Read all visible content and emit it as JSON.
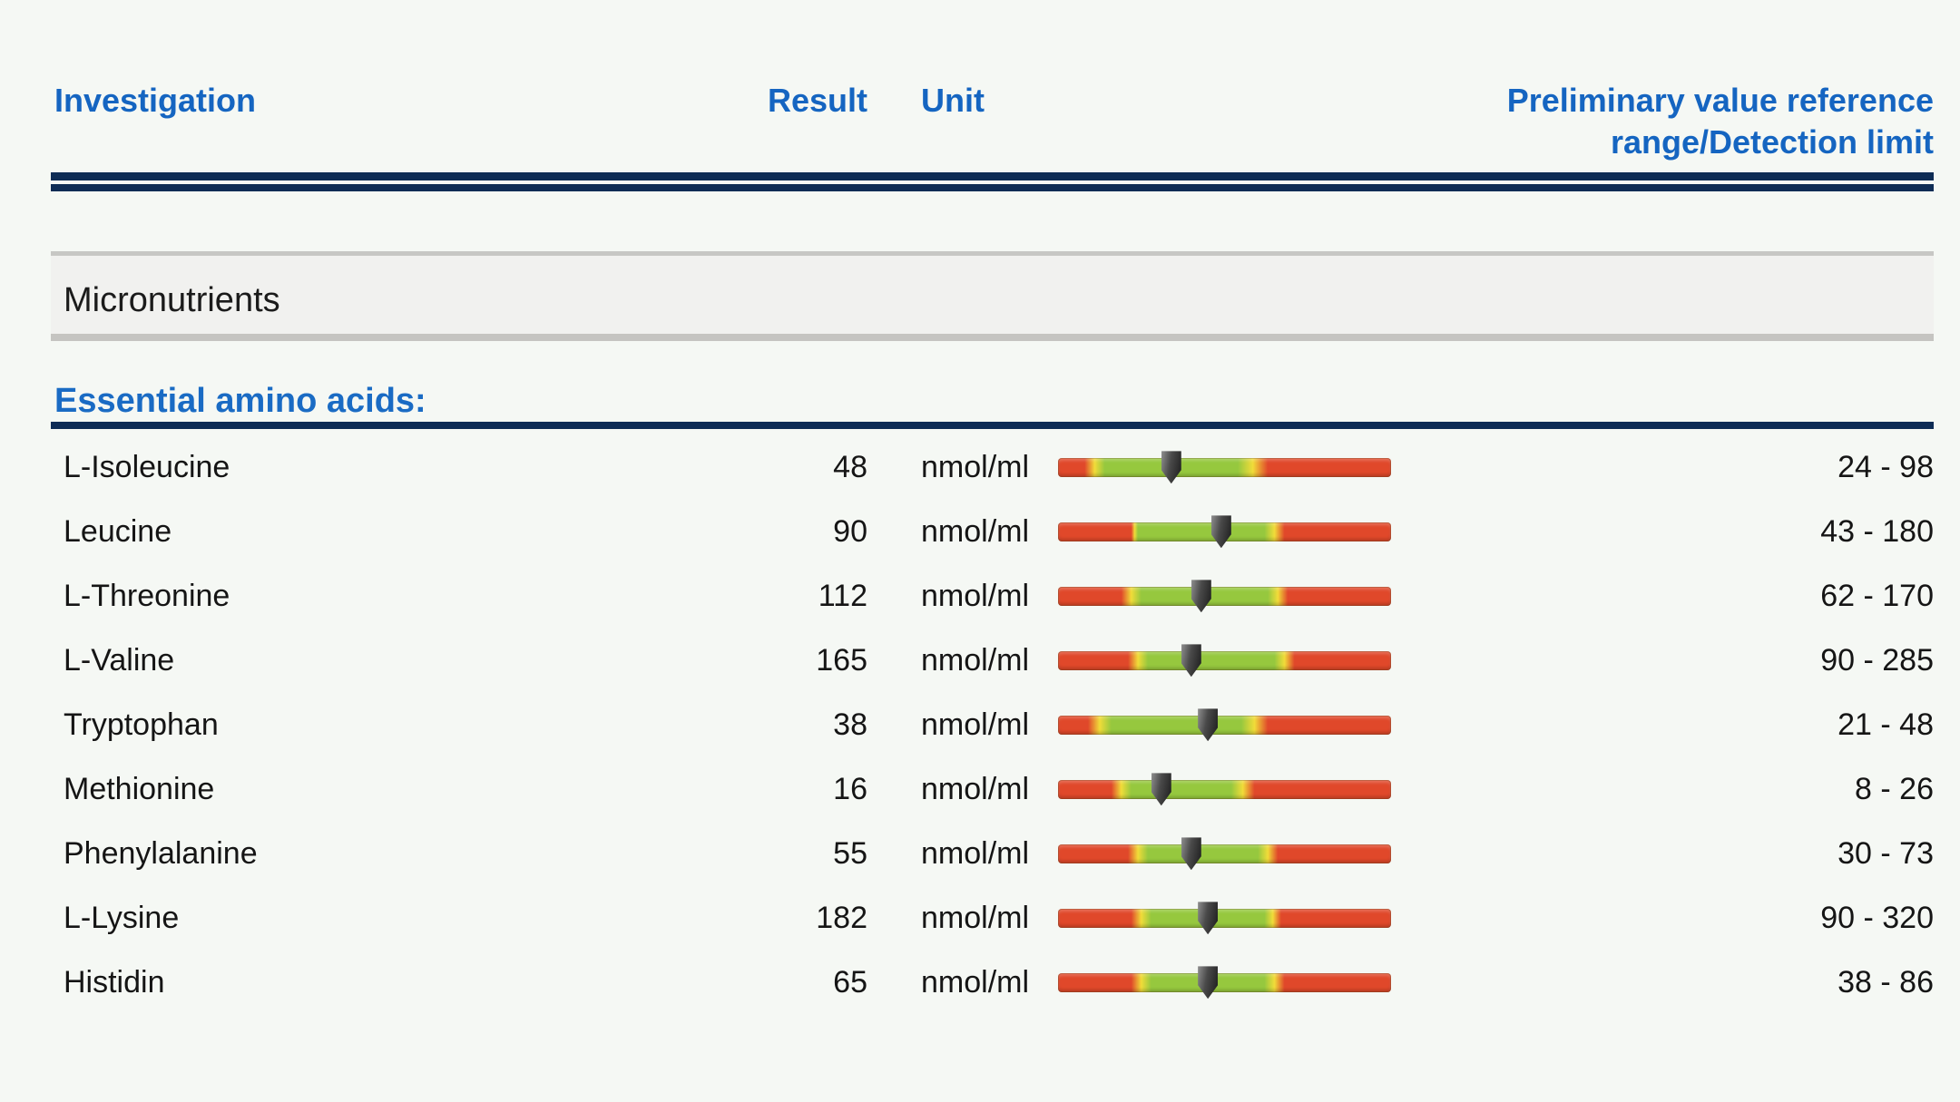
{
  "header": {
    "investigation": "Investigation",
    "result": "Result",
    "unit": "Unit",
    "range_line1": "Preliminary value reference",
    "range_line2": "range/Detection limit"
  },
  "sections": {
    "category": "Micronutrients",
    "subsection": "Essential amino acids:"
  },
  "colors": {
    "header_blue": "#1565c1",
    "navy_rule": "#0e2c55",
    "bar_red": "#e0482a",
    "bar_yellow": "#f1dc39",
    "bar_green": "#96c83e",
    "marker": "#2a2a2a"
  },
  "table": {
    "rows": [
      {
        "name": "L-Isoleucine",
        "result": "48",
        "unit": "nmol/ml",
        "range": "24 - 98",
        "gauge": {
          "red_left_end": 8,
          "green_start": 14,
          "green_end": 54,
          "red_right_start": 63,
          "marker_pct": 34
        }
      },
      {
        "name": "Leucine",
        "result": "90",
        "unit": "nmol/ml",
        "range": "43 - 180",
        "gauge": {
          "red_left_end": 22,
          "green_start": 24,
          "green_end": 62,
          "red_right_start": 68,
          "marker_pct": 49
        }
      },
      {
        "name": "L-Threonine",
        "result": "112",
        "unit": "nmol/ml",
        "range": "62 - 170",
        "gauge": {
          "red_left_end": 19,
          "green_start": 25,
          "green_end": 63,
          "red_right_start": 69,
          "marker_pct": 43
        }
      },
      {
        "name": "L-Valine",
        "result": "165",
        "unit": "nmol/ml",
        "range": "90 - 285",
        "gauge": {
          "red_left_end": 21,
          "green_start": 27,
          "green_end": 65,
          "red_right_start": 71,
          "marker_pct": 40
        }
      },
      {
        "name": "Tryptophan",
        "result": "38",
        "unit": "nmol/ml",
        "range": "21 - 48",
        "gauge": {
          "red_left_end": 9,
          "green_start": 16,
          "green_end": 55,
          "red_right_start": 63,
          "marker_pct": 45
        }
      },
      {
        "name": "Methionine",
        "result": "16",
        "unit": "nmol/ml",
        "range": "8 - 26",
        "gauge": {
          "red_left_end": 16,
          "green_start": 22,
          "green_end": 52,
          "red_right_start": 59,
          "marker_pct": 31
        }
      },
      {
        "name": "Phenylalanine",
        "result": "55",
        "unit": "nmol/ml",
        "range": "30 - 73",
        "gauge": {
          "red_left_end": 21,
          "green_start": 27,
          "green_end": 60,
          "red_right_start": 66,
          "marker_pct": 40
        }
      },
      {
        "name": "L-Lysine",
        "result": "182",
        "unit": "nmol/ml",
        "range": "90 - 320",
        "gauge": {
          "red_left_end": 22,
          "green_start": 28,
          "green_end": 62,
          "red_right_start": 67,
          "marker_pct": 45
        }
      },
      {
        "name": "Histidin",
        "result": "65",
        "unit": "nmol/ml",
        "range": "38 - 86",
        "gauge": {
          "red_left_end": 22,
          "green_start": 28,
          "green_end": 62,
          "red_right_start": 68,
          "marker_pct": 45
        }
      }
    ]
  }
}
